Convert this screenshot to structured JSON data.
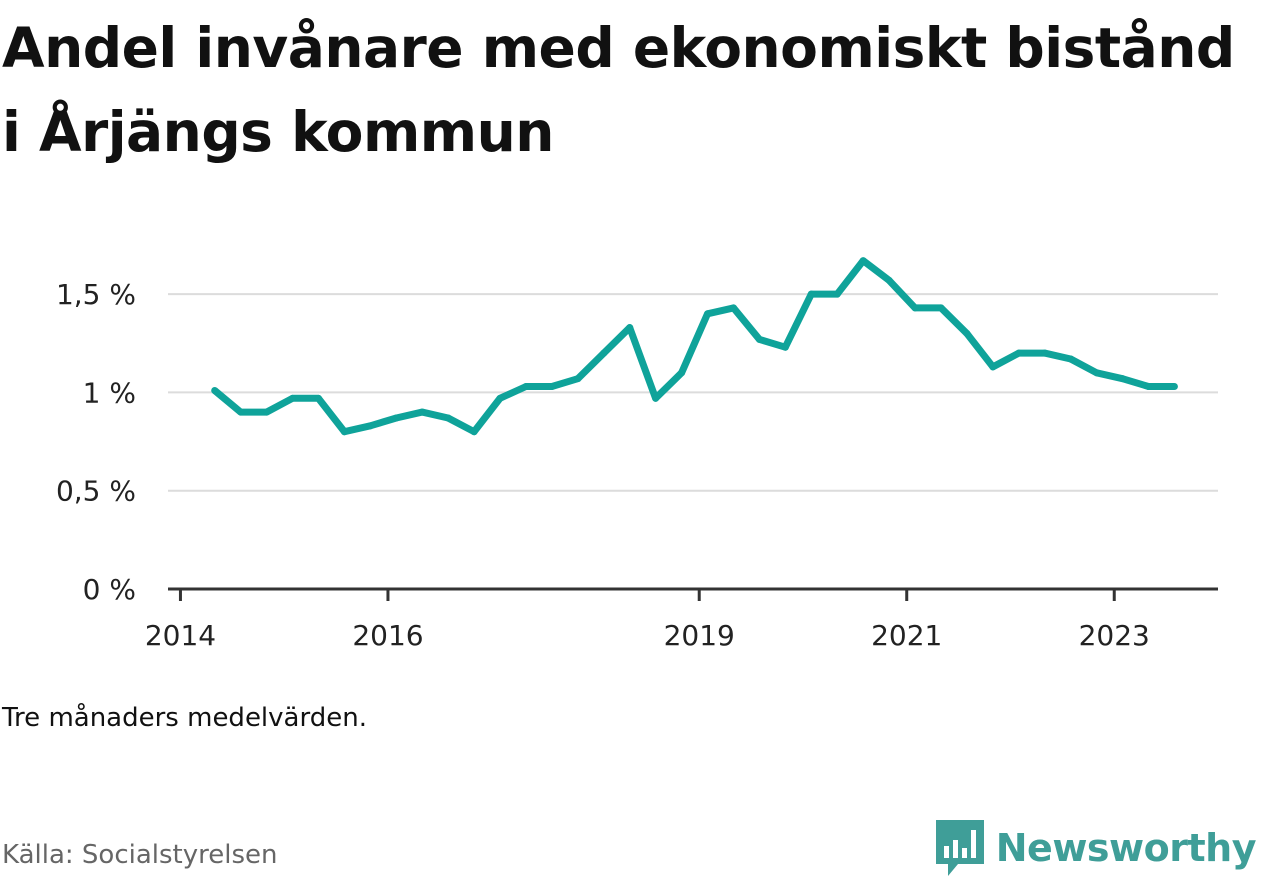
{
  "title": "Andel invånare med ekonomiskt bistånd i Årjängs kommun",
  "note": "Tre månaders medelvärden.",
  "source": "Källa: Socialstyrelsen",
  "brand": "Newsworthy",
  "colors": {
    "line": "#0fa39a",
    "grid": "#dcdcdc",
    "axis": "#333333",
    "brand": "#3f9e98"
  },
  "chart_data": {
    "type": "line",
    "title": "Andel invånare med ekonomiskt bistånd i Årjängs kommun",
    "xlabel": "",
    "ylabel": "",
    "ylim": [
      0,
      1.75
    ],
    "xlim": [
      2013.88,
      2024.0
    ],
    "grid": true,
    "y_ticks": [
      {
        "value": 0,
        "label": "0 %"
      },
      {
        "value": 0.5,
        "label": "0,5 %"
      },
      {
        "value": 1,
        "label": "1 %"
      },
      {
        "value": 1.5,
        "label": "1,5 %"
      }
    ],
    "x_ticks": [
      {
        "value": 2014,
        "label": "2014"
      },
      {
        "value": 2016,
        "label": "2016"
      },
      {
        "value": 2019,
        "label": "2019"
      },
      {
        "value": 2021,
        "label": "2021"
      },
      {
        "value": 2023,
        "label": "2023"
      }
    ],
    "series": [
      {
        "x": [
          2014.33,
          2014.58,
          2014.83,
          2015.08,
          2015.33,
          2015.58,
          2015.83,
          2016.08,
          2016.33,
          2016.58,
          2016.83,
          2017.08,
          2017.33,
          2017.58,
          2017.83,
          2018.08,
          2018.33,
          2018.58,
          2018.83,
          2019.08,
          2019.33,
          2019.58,
          2019.83,
          2020.08,
          2020.33,
          2020.58,
          2020.83,
          2021.08,
          2021.33,
          2021.58,
          2021.83,
          2022.08,
          2022.33,
          2022.58,
          2022.83,
          2023.08,
          2023.33,
          2023.58
        ],
        "values": [
          1.01,
          0.9,
          0.9,
          0.97,
          0.97,
          0.8,
          0.83,
          0.87,
          0.9,
          0.87,
          0.8,
          0.97,
          1.03,
          1.03,
          1.07,
          1.2,
          1.33,
          0.97,
          1.1,
          1.4,
          1.43,
          1.27,
          1.23,
          1.5,
          1.5,
          1.67,
          1.57,
          1.43,
          1.43,
          1.3,
          1.13,
          1.2,
          1.2,
          1.17,
          1.1,
          1.07,
          1.03,
          1.03
        ]
      }
    ]
  }
}
